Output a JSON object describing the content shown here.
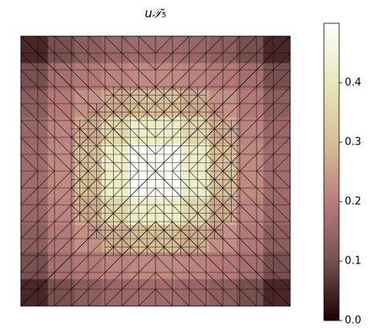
{
  "chart_data": {
    "type": "heatmap",
    "title": "u𝒯₅",
    "colormap": "pink",
    "values": [
      [
        0.05,
        0.1,
        0.13,
        0.15,
        0.16,
        0.16,
        0.15,
        0.13,
        0.1,
        0.05
      ],
      [
        0.1,
        0.17,
        0.19,
        0.21,
        0.22,
        0.22,
        0.21,
        0.19,
        0.17,
        0.1
      ],
      [
        0.13,
        0.19,
        0.23,
        0.27,
        0.3,
        0.3,
        0.27,
        0.23,
        0.19,
        0.13
      ],
      [
        0.15,
        0.21,
        0.27,
        0.36,
        0.42,
        0.42,
        0.36,
        0.27,
        0.21,
        0.15
      ],
      [
        0.16,
        0.22,
        0.3,
        0.42,
        0.49,
        0.49,
        0.42,
        0.3,
        0.22,
        0.16
      ],
      [
        0.16,
        0.22,
        0.3,
        0.42,
        0.49,
        0.49,
        0.42,
        0.3,
        0.22,
        0.16
      ],
      [
        0.15,
        0.21,
        0.27,
        0.36,
        0.42,
        0.42,
        0.36,
        0.27,
        0.21,
        0.15
      ],
      [
        0.13,
        0.19,
        0.23,
        0.27,
        0.3,
        0.3,
        0.27,
        0.23,
        0.19,
        0.13
      ],
      [
        0.1,
        0.17,
        0.19,
        0.21,
        0.22,
        0.22,
        0.21,
        0.19,
        0.17,
        0.1
      ],
      [
        0.05,
        0.1,
        0.13,
        0.15,
        0.16,
        0.16,
        0.15,
        0.13,
        0.1,
        0.05
      ]
    ],
    "clim": [
      0,
      0.5
    ],
    "cticks": [
      {
        "value": 0,
        "label": "0.0"
      },
      0.1,
      0.2,
      0.3,
      0.4
    ]
  }
}
